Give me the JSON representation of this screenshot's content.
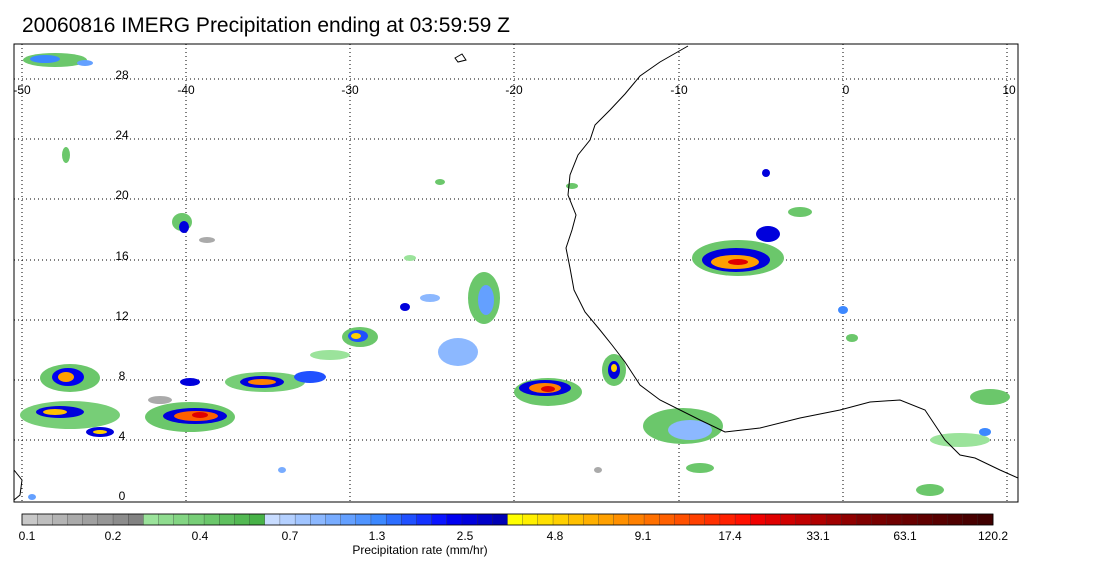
{
  "title": "20060816 IMERG Precipitation ending at 03:59:59 Z",
  "map": {
    "projection": "cylindrical equidistant",
    "lon_range": [
      -50,
      10
    ],
    "lat_range": [
      -1,
      31
    ],
    "lon_ticks": [
      "-50",
      "-40",
      "-30",
      "-20",
      "-10",
      "0",
      "10"
    ],
    "lat_ticks": [
      "28",
      "24",
      "20",
      "16",
      "12",
      "8",
      "4",
      "0"
    ],
    "gridlines": "dotted",
    "coastline_color": "#000000"
  },
  "colorbar": {
    "title": "Precipitation rate (mm/hr)",
    "tick_labels": [
      "0.1",
      "0.2",
      "0.4",
      "0.7",
      "1.3",
      "2.5",
      "4.8",
      "9.1",
      "17.4",
      "33.1",
      "63.1",
      "120.2"
    ],
    "colors": [
      "#c8c8c8",
      "#bebebe",
      "#b4b4b4",
      "#aaaaaa",
      "#a0a0a0",
      "#969696",
      "#8c8c8c",
      "#828282",
      "#9be39b",
      "#8fdc8f",
      "#83d583",
      "#77ce77",
      "#6bc76b",
      "#5fc05f",
      "#53b953",
      "#47b247",
      "#c8dcff",
      "#b4d0ff",
      "#a0c4ff",
      "#8cb8ff",
      "#78acff",
      "#64a0ff",
      "#5094ff",
      "#3c88ff",
      "#2d6eff",
      "#2050ff",
      "#1432ff",
      "#0a14ff",
      "#0000f0",
      "#0000dc",
      "#0000c8",
      "#0000b4",
      "#ffff00",
      "#fff000",
      "#ffe000",
      "#ffd000",
      "#ffc000",
      "#ffb000",
      "#ffa000",
      "#ff9000",
      "#ff8000",
      "#ff7000",
      "#ff6000",
      "#ff5000",
      "#ff4000",
      "#ff3000",
      "#ff2000",
      "#ff1000",
      "#f00000",
      "#e00000",
      "#d00000",
      "#c00000",
      "#b00000",
      "#a00000",
      "#900000",
      "#800000",
      "#780000",
      "#700000",
      "#680000",
      "#600000",
      "#580000",
      "#500000",
      "#480000",
      "#400000"
    ]
  }
}
